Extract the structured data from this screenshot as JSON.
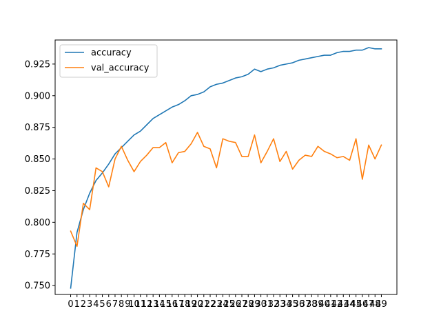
{
  "chart_data": {
    "type": "line",
    "x": [
      0,
      1,
      2,
      3,
      4,
      5,
      6,
      7,
      8,
      9,
      10,
      11,
      12,
      13,
      14,
      15,
      16,
      17,
      18,
      19,
      20,
      21,
      22,
      23,
      24,
      25,
      26,
      27,
      28,
      29,
      30,
      31,
      32,
      33,
      34,
      35,
      36,
      37,
      38,
      39,
      40,
      41,
      42,
      43,
      44,
      45,
      46,
      47,
      48,
      49
    ],
    "ylim": [
      0.743,
      0.944
    ],
    "y_ticks": [
      0.75,
      0.775,
      0.8,
      0.825,
      0.85,
      0.875,
      0.9,
      0.925
    ],
    "y_tick_labels": [
      "0.750",
      "0.775",
      "0.800",
      "0.825",
      "0.850",
      "0.875",
      "0.900",
      "0.925"
    ],
    "x_tick_labels": [
      "0",
      "1",
      "2",
      "3",
      "4",
      "5",
      "6",
      "7",
      "8",
      "9",
      "10",
      "11",
      "12",
      "13",
      "14",
      "15",
      "16",
      "17",
      "18",
      "19",
      "20",
      "21",
      "22",
      "23",
      "24",
      "25",
      "26",
      "27",
      "28",
      "29",
      "30",
      "31",
      "32",
      "33",
      "34",
      "35",
      "36",
      "37",
      "38",
      "39",
      "40",
      "41",
      "42",
      "43",
      "44",
      "45",
      "46",
      "47",
      "48",
      "49"
    ],
    "grid": false,
    "legend_position": "top-left",
    "series": [
      {
        "name": "accuracy",
        "color": "#1f77b4",
        "values": [
          0.748,
          0.792,
          0.81,
          0.823,
          0.833,
          0.839,
          0.846,
          0.854,
          0.859,
          0.864,
          0.869,
          0.872,
          0.877,
          0.882,
          0.885,
          0.888,
          0.891,
          0.893,
          0.896,
          0.9,
          0.901,
          0.903,
          0.907,
          0.909,
          0.91,
          0.912,
          0.914,
          0.915,
          0.917,
          0.921,
          0.919,
          0.921,
          0.922,
          0.924,
          0.925,
          0.926,
          0.928,
          0.929,
          0.93,
          0.931,
          0.932,
          0.932,
          0.934,
          0.935,
          0.935,
          0.936,
          0.936,
          0.938,
          0.937,
          0.937
        ]
      },
      {
        "name": "val_accuracy",
        "color": "#ff7f0e",
        "values": [
          0.793,
          0.781,
          0.815,
          0.81,
          0.843,
          0.84,
          0.828,
          0.85,
          0.86,
          0.849,
          0.84,
          0.848,
          0.853,
          0.859,
          0.859,
          0.863,
          0.847,
          0.855,
          0.856,
          0.862,
          0.871,
          0.86,
          0.858,
          0.843,
          0.866,
          0.864,
          0.863,
          0.852,
          0.852,
          0.869,
          0.847,
          0.856,
          0.866,
          0.848,
          0.856,
          0.842,
          0.849,
          0.853,
          0.852,
          0.86,
          0.856,
          0.854,
          0.851,
          0.852,
          0.849,
          0.866,
          0.834,
          0.861,
          0.85,
          0.861
        ]
      }
    ]
  }
}
